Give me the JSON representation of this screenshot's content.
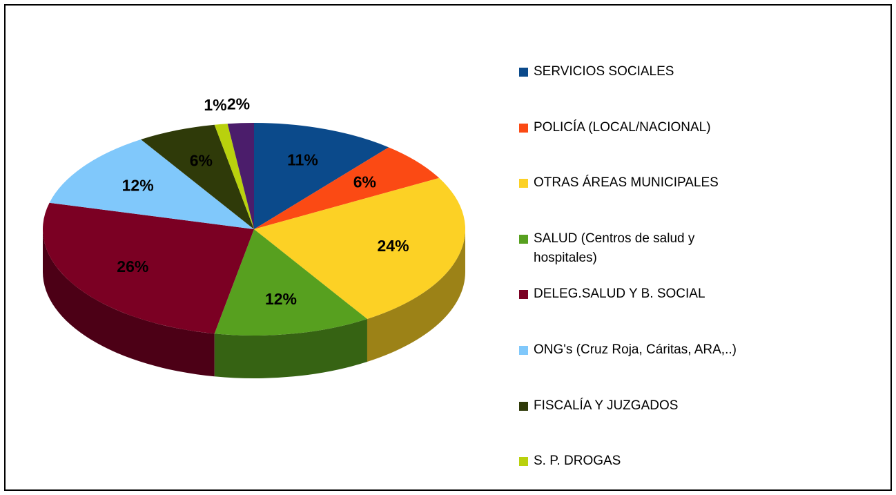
{
  "chart_data": {
    "type": "pie",
    "categories": [
      "SERVICIOS SOCIALES",
      "POLICÍA (LOCAL/NACIONAL)",
      "OTRAS ÁREAS MUNICIPALES",
      "SALUD (Centros de salud y hospitales)",
      "DELEG.SALUD Y B. SOCIAL",
      "ONG's (Cruz Roja, Cáritas, ARA,..)",
      "FISCALÍA Y JUZGADOS",
      "S. P. DROGAS",
      null
    ],
    "values": [
      11,
      6,
      24,
      12,
      26,
      12,
      6,
      1,
      2
    ],
    "value_labels": [
      "11%",
      "6%",
      "24%",
      "12%",
      "26%",
      "12%",
      "6%",
      "1%",
      "2%"
    ],
    "colors": [
      "#0b4a8b",
      "#fb4a14",
      "#fcd125",
      "#57a01f",
      "#7b0023",
      "#80c8fb",
      "#2f3a09",
      "#b9d10d",
      "#4b1d6b"
    ],
    "legend": "right"
  }
}
